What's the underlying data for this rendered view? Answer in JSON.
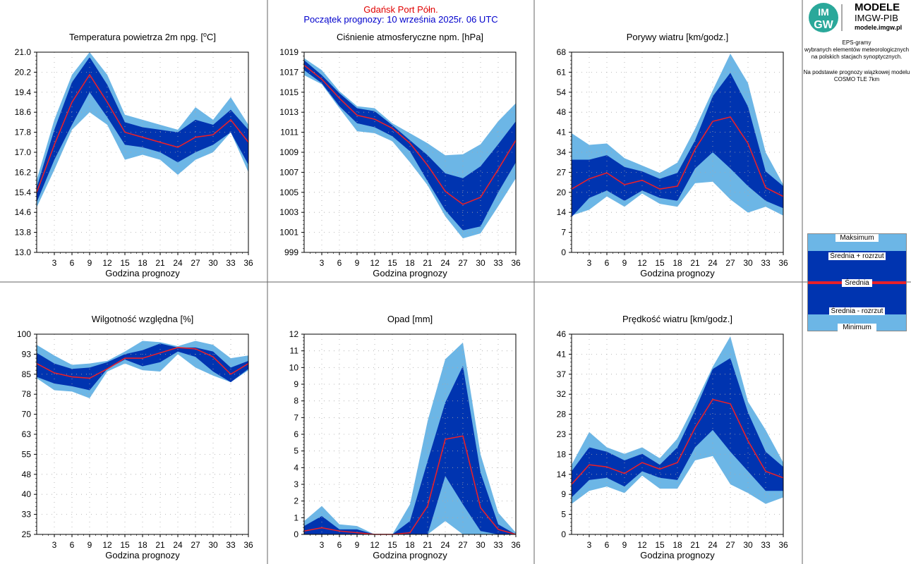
{
  "header": {
    "station": "Gdańsk Port Półn.",
    "forecast_start": "Początek prognozy: 10 września 2025r. 06 UTC"
  },
  "brand": {
    "logo_text_1": "IM",
    "logo_text_2": "GW",
    "title": "MODELE",
    "subtitle": "IMGW-PIB",
    "url": "modele.imgw.pl"
  },
  "description": {
    "line1": "EPS-gramy",
    "line2": "wybranych elementów meteorologicznych",
    "line3": "na polskich stacjach  synoptycznych.",
    "line4": "Na podstawie prognozy wiązkowej modelu",
    "line5": "COSMO TLE 7km"
  },
  "legend": {
    "max": "Maksimum",
    "plus": "Średnia + rozrzut",
    "mean": "Średnia",
    "minus": "Średnia - rozrzut",
    "min": "Minimum"
  },
  "colors": {
    "outer": "#6cb6e6",
    "inner": "#0034b0",
    "mean": "#e8202a",
    "grid": "#a8a8a8"
  },
  "chart_data": [
    {
      "type": "area",
      "title": "Temperatura powietrza 2m npg. [°C]",
      "title_plain": "Temperatura powietrza 2m npg. [",
      "title_sup": "o",
      "title_after": "C]",
      "xlabel": "Godzina prognozy",
      "x": [
        0,
        3,
        6,
        9,
        12,
        15,
        18,
        21,
        24,
        27,
        30,
        33,
        36
      ],
      "xticks": [
        3,
        6,
        9,
        12,
        15,
        18,
        21,
        24,
        27,
        30,
        33,
        36
      ],
      "ylim": [
        13.0,
        21.0
      ],
      "yticks": [
        "13.0",
        "13.8",
        "14.6",
        "15.4",
        "16.2",
        "17.0",
        "17.8",
        "18.6",
        "19.4",
        "20.2",
        "21.0"
      ],
      "max": [
        15.9,
        18.3,
        20.1,
        21.0,
        20.1,
        18.5,
        18.3,
        18.1,
        17.9,
        18.8,
        18.3,
        19.2,
        18.1
      ],
      "plus": [
        15.6,
        17.9,
        19.8,
        20.8,
        19.7,
        18.2,
        18.0,
        17.9,
        17.8,
        18.3,
        18.1,
        18.7,
        17.9
      ],
      "mean": [
        15.4,
        17.3,
        19.0,
        20.1,
        19.0,
        17.8,
        17.6,
        17.4,
        17.2,
        17.6,
        17.7,
        18.3,
        17.4
      ],
      "minus": [
        15.0,
        16.7,
        18.1,
        19.4,
        18.4,
        17.3,
        17.2,
        17.0,
        16.6,
        17.0,
        17.3,
        17.8,
        16.5
      ],
      "min": [
        14.8,
        16.3,
        17.9,
        18.6,
        18.1,
        16.7,
        16.9,
        16.7,
        16.1,
        16.7,
        17.0,
        17.8,
        16.2
      ]
    },
    {
      "type": "area",
      "title": "Ciśnienie atmosferyczne npm. [hPa]",
      "xlabel": "Godzina prognozy",
      "x": [
        0,
        3,
        6,
        9,
        12,
        15,
        18,
        21,
        24,
        27,
        30,
        33,
        36
      ],
      "xticks": [
        3,
        6,
        9,
        12,
        15,
        18,
        21,
        24,
        27,
        30,
        33,
        36
      ],
      "ylim": [
        999,
        1019
      ],
      "yticks": [
        "999",
        "1001",
        "1003",
        "1005",
        "1007",
        "1009",
        "1011",
        "1013",
        "1015",
        "1017",
        "1019"
      ],
      "max": [
        1018.4,
        1017.2,
        1015.1,
        1013.6,
        1013.4,
        1011.9,
        1010.9,
        1009.9,
        1008.7,
        1008.8,
        1009.8,
        1012.1,
        1013.9
      ],
      "plus": [
        1018.2,
        1016.7,
        1014.9,
        1013.4,
        1013.1,
        1011.7,
        1010.2,
        1008.7,
        1006.9,
        1006.4,
        1007.6,
        1009.8,
        1012.1
      ],
      "mean": [
        1017.7,
        1016.3,
        1014.4,
        1012.7,
        1012.3,
        1011.4,
        1009.9,
        1007.7,
        1005.1,
        1003.8,
        1004.5,
        1007.3,
        1010.2
      ],
      "minus": [
        1017.2,
        1015.9,
        1013.6,
        1011.9,
        1011.5,
        1010.6,
        1009.1,
        1006.1,
        1003.2,
        1001.2,
        1001.6,
        1005.0,
        1008.0
      ],
      "min": [
        1016.7,
        1015.8,
        1013.4,
        1011.1,
        1010.9,
        1010.1,
        1008.0,
        1005.7,
        1002.6,
        1000.4,
        1000.9,
        1003.6,
        1006.4
      ]
    },
    {
      "type": "area",
      "title": "Porywy wiatru [km/godz.]",
      "xlabel": "Godzina prognozy",
      "x": [
        0,
        3,
        6,
        9,
        12,
        15,
        18,
        21,
        24,
        27,
        30,
        33,
        36
      ],
      "xticks": [
        3,
        6,
        9,
        12,
        15,
        18,
        21,
        24,
        27,
        30,
        33,
        36
      ],
      "ylim": [
        0,
        68
      ],
      "yticks": [
        "0",
        "7",
        "14",
        "20",
        "27",
        "34",
        "41",
        "48",
        "54",
        "61",
        "68"
      ],
      "max": [
        40.5,
        36.5,
        37.0,
        32.0,
        29.5,
        27.0,
        30.5,
        42.0,
        55.0,
        67.5,
        57.5,
        34.0,
        23.0
      ],
      "plus": [
        31.5,
        31.5,
        33.0,
        29.0,
        27.5,
        25.0,
        27.0,
        38.0,
        53.0,
        61.0,
        49.5,
        27.5,
        22.5
      ],
      "mean": [
        21.5,
        25.0,
        27.0,
        23.0,
        24.5,
        21.5,
        22.5,
        35.0,
        44.5,
        46.0,
        37.0,
        22.0,
        19.0
      ],
      "minus": [
        12.0,
        18.5,
        21.0,
        17.5,
        21.0,
        18.5,
        17.5,
        28.5,
        34.0,
        28.5,
        22.5,
        17.5,
        15.0
      ],
      "min": [
        12.5,
        14.5,
        19.0,
        15.5,
        20.0,
        16.5,
        15.5,
        23.5,
        24.0,
        18.0,
        13.5,
        15.5,
        12.5
      ]
    },
    {
      "type": "area",
      "title": "Wilgotność względna [%]",
      "xlabel": "Godzina prognozy",
      "x": [
        0,
        3,
        6,
        9,
        12,
        15,
        18,
        21,
        24,
        27,
        30,
        33,
        36
      ],
      "xticks": [
        3,
        6,
        9,
        12,
        15,
        18,
        21,
        24,
        27,
        30,
        33,
        36
      ],
      "ylim": [
        25,
        100
      ],
      "yticks": [
        "25",
        "33",
        "40",
        "48",
        "55",
        "63",
        "70",
        "78",
        "85",
        "93",
        "100"
      ],
      "max": [
        96.0,
        92.0,
        88.5,
        89.0,
        90.0,
        93.5,
        97.5,
        97.0,
        95.5,
        97.5,
        96.0,
        91.0,
        92.0
      ],
      "plus": [
        93.0,
        89.0,
        87.0,
        87.5,
        89.5,
        92.5,
        94.0,
        96.5,
        95.0,
        95.0,
        93.5,
        87.5,
        90.0
      ],
      "mean": [
        89.0,
        85.5,
        84.0,
        83.5,
        87.0,
        91.0,
        91.0,
        93.0,
        95.0,
        94.5,
        91.5,
        85.0,
        89.0
      ],
      "minus": [
        84.0,
        81.5,
        80.5,
        79.0,
        87.0,
        90.5,
        88.0,
        89.5,
        93.5,
        91.5,
        86.0,
        82.0,
        87.0
      ],
      "min": [
        83.5,
        79.0,
        78.5,
        76.0,
        86.0,
        89.0,
        86.5,
        86.0,
        92.5,
        87.5,
        84.5,
        82.0,
        86.5
      ]
    },
    {
      "type": "area",
      "title": "Opad [mm]",
      "xlabel": "Godzina prognozy",
      "x": [
        0,
        3,
        6,
        9,
        12,
        15,
        18,
        21,
        24,
        27,
        30,
        33,
        36
      ],
      "xticks": [
        3,
        6,
        9,
        12,
        15,
        18,
        21,
        24,
        27,
        30,
        33,
        36
      ],
      "ylim": [
        0,
        12
      ],
      "yticks": [
        "0",
        "1",
        "2",
        "3",
        "4",
        "5",
        "6",
        "7",
        "8",
        "9",
        "10",
        "11",
        "12"
      ],
      "yticklabels": [
        "0",
        "1",
        "2",
        "3",
        "4",
        "5",
        "6",
        "7",
        "8",
        "9",
        "10",
        "11",
        "12"
      ],
      "max": [
        0.8,
        1.7,
        0.6,
        0.5,
        0.0,
        0.0,
        1.8,
        6.8,
        10.5,
        11.5,
        4.8,
        1.3,
        0.1
      ],
      "plus": [
        0.5,
        1.1,
        0.3,
        0.3,
        0.0,
        0.0,
        0.8,
        4.4,
        7.9,
        10.1,
        3.7,
        0.6,
        0.0
      ],
      "mean": [
        0.2,
        0.4,
        0.2,
        0.1,
        0.0,
        0.0,
        0.1,
        1.7,
        5.7,
        5.9,
        1.6,
        0.3,
        0.0
      ],
      "minus": [
        0.0,
        0.0,
        0.0,
        0.0,
        0.0,
        0.0,
        0.0,
        0.0,
        3.5,
        1.8,
        0.2,
        0.0,
        0.0
      ],
      "min": [
        0.0,
        0.0,
        0.0,
        0.0,
        0.0,
        0.0,
        0.0,
        0.0,
        0.8,
        0.0,
        0.0,
        0.0,
        0.0
      ]
    },
    {
      "type": "area",
      "title": "Prędkość wiatru [km/godz.]",
      "xlabel": "Godzina prognozy",
      "x": [
        0,
        3,
        6,
        9,
        12,
        15,
        18,
        21,
        24,
        27,
        30,
        33,
        36
      ],
      "xticks": [
        3,
        6,
        9,
        12,
        15,
        18,
        21,
        24,
        27,
        30,
        33,
        36
      ],
      "ylim": [
        0,
        46
      ],
      "yticks": [
        "0",
        "5",
        "9",
        "14",
        "18",
        "23",
        "28",
        "32",
        "37",
        "41",
        "46"
      ],
      "max": [
        16.0,
        23.5,
        20.0,
        18.5,
        20.0,
        17.5,
        22.0,
        30.0,
        38.5,
        45.5,
        30.5,
        24.0,
        16.5
      ],
      "plus": [
        14.5,
        20.0,
        19.0,
        17.0,
        18.5,
        16.0,
        20.0,
        28.5,
        38.0,
        40.5,
        28.0,
        19.0,
        15.5
      ],
      "mean": [
        11.5,
        16.0,
        15.5,
        14.0,
        16.5,
        15.0,
        16.5,
        24.5,
        31.0,
        30.0,
        21.5,
        14.5,
        13.0
      ],
      "minus": [
        8.5,
        12.5,
        13.0,
        11.0,
        14.5,
        13.0,
        12.5,
        20.0,
        24.0,
        19.0,
        14.5,
        10.0,
        10.0
      ],
      "min": [
        7.0,
        10.0,
        11.0,
        9.5,
        13.5,
        10.5,
        10.5,
        17.0,
        18.0,
        11.5,
        9.5,
        7.0,
        8.5
      ]
    }
  ]
}
